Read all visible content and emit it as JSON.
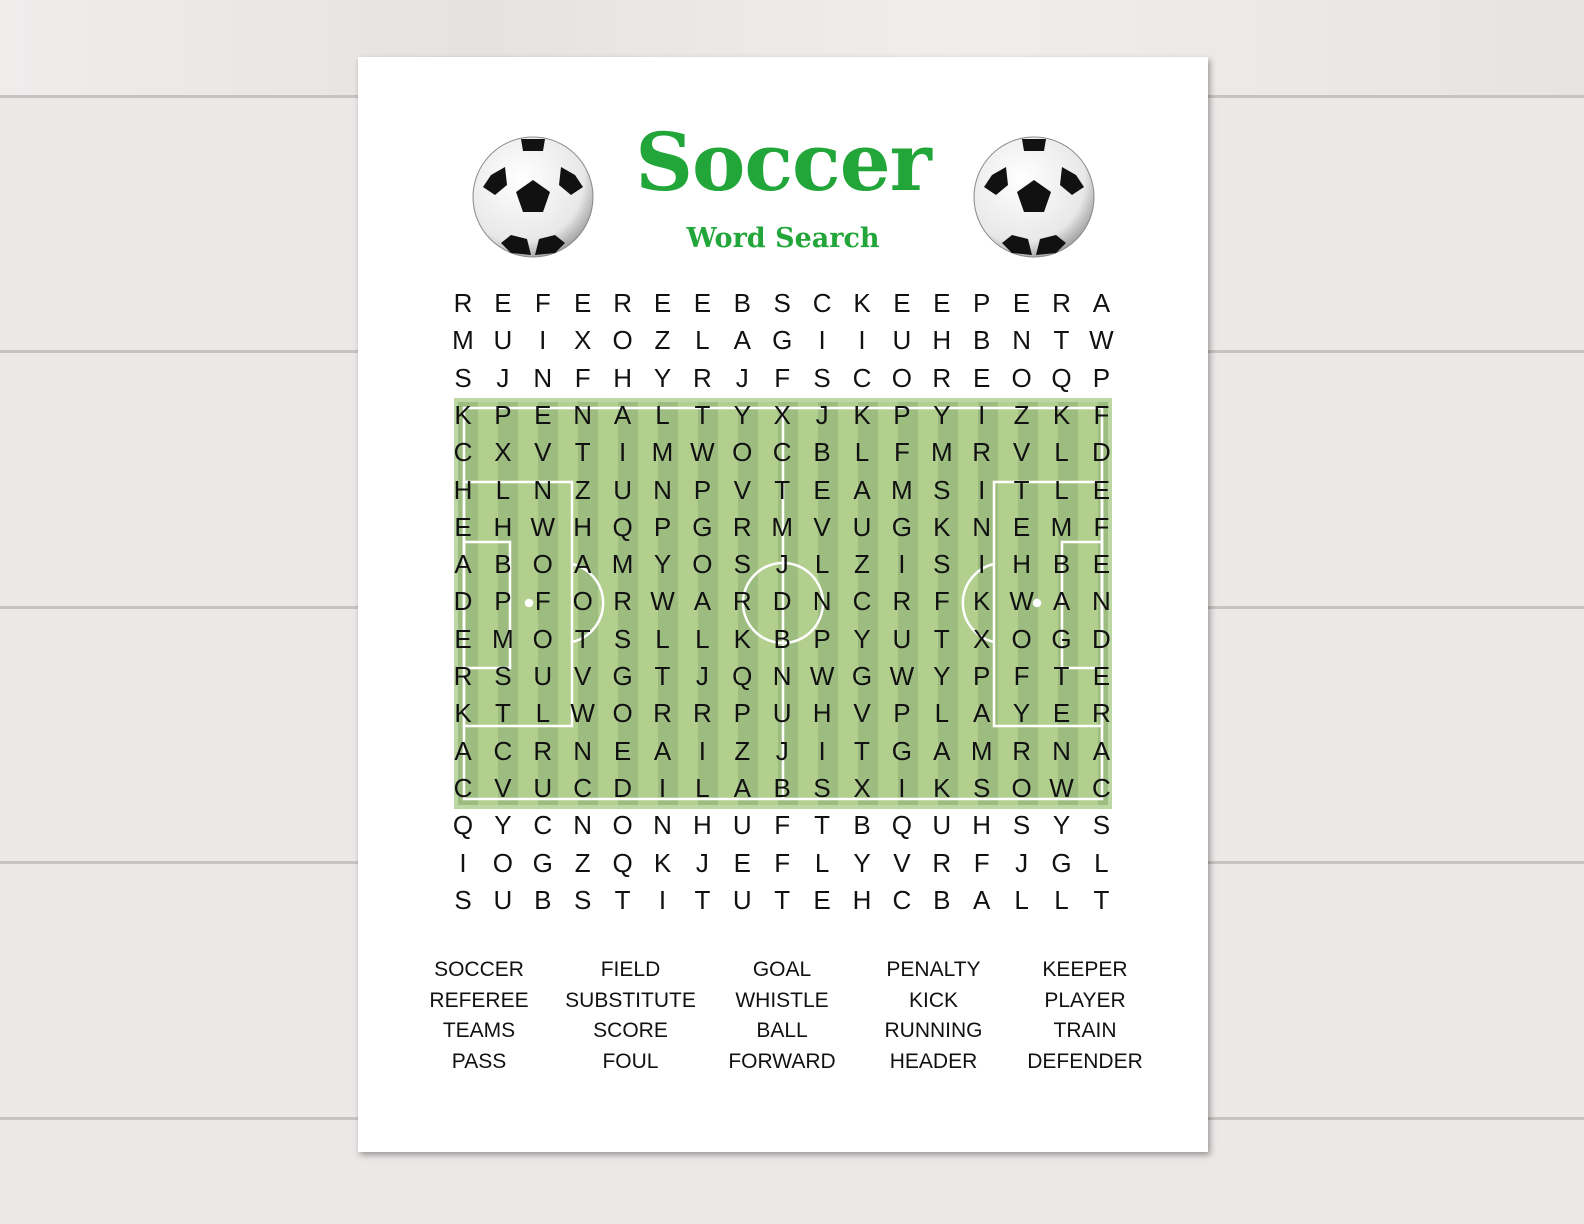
{
  "header": {
    "title": "Soccer",
    "subtitle": "Word Search"
  },
  "icons": {
    "decoration": "soccer-ball-icon"
  },
  "colors": {
    "accent": "#22a63a",
    "field_dark": "#9dbd80",
    "field_light": "#b3cf8e"
  },
  "grid": [
    "REFEREEBSCKEEPERA",
    "MUIXOZLAGIIUHBNTW",
    "SJNFHYRJFSCOREOQP",
    "KPENALTYXJKPYIZKF",
    "CXVTIMWOCBLFMRVLD",
    "HLNZUNPVTEAMSITLE",
    "EHWHQPGRMVUGKNEMF",
    "ABOAMYOSJLZISIHBE",
    "DPFORWARDNCRFKWAN",
    "EMOTSLLKBPYUTXOGD",
    "RSUVGTJQNWGWYPFTE",
    "KTLWORRPUHVPLAYER",
    "ACRNEAIZJITGAMRNA",
    "CVUCDILABSXIKSOWC",
    "QYCNONHUFTBQUHSYS",
    "IOGZQKJEFLYVRFJGL",
    "SUBSTITUTEHCBALLT"
  ],
  "word_list": [
    [
      "SOCCER",
      "REFEREE",
      "TEAMS",
      "PASS"
    ],
    [
      "FIELD",
      "SUBSTITUTE",
      "SCORE",
      "FOUL"
    ],
    [
      "GOAL",
      "WHISTLE",
      "BALL",
      "FORWARD"
    ],
    [
      "PENALTY",
      "KICK",
      "RUNNING",
      "HEADER"
    ],
    [
      "KEEPER",
      "PLAYER",
      "TRAIN",
      "DEFENDER"
    ]
  ]
}
